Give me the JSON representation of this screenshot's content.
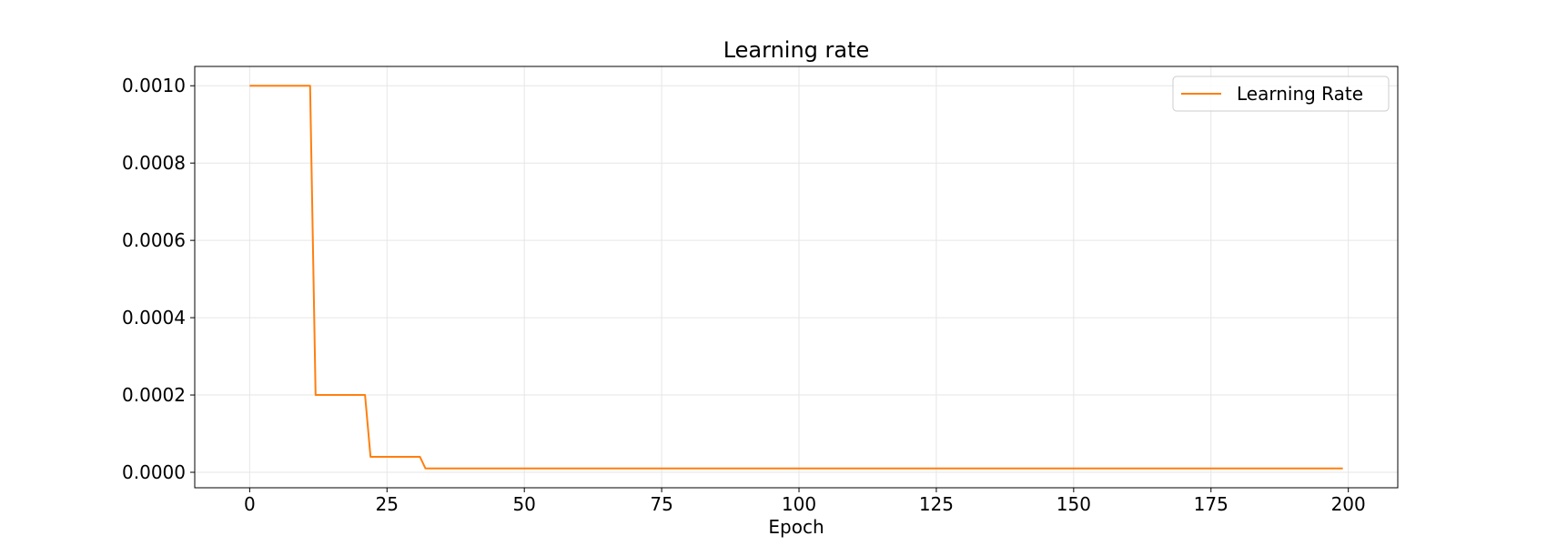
{
  "chart_data": {
    "type": "line",
    "title": "Learning rate",
    "xlabel": "Epoch",
    "ylabel": "",
    "xlim": [
      -10,
      209
    ],
    "ylim": [
      -4e-05,
      0.00105
    ],
    "grid": true,
    "legend_position": "top-right",
    "x_ticks": [
      0,
      25,
      50,
      75,
      100,
      125,
      150,
      175,
      200
    ],
    "x_tick_labels": [
      "0",
      "25",
      "50",
      "75",
      "100",
      "125",
      "150",
      "175",
      "200"
    ],
    "y_ticks": [
      0.0,
      0.0002,
      0.0004,
      0.0006,
      0.0008,
      0.001
    ],
    "y_tick_labels": [
      "0.0000",
      "0.0002",
      "0.0004",
      "0.0006",
      "0.0008",
      "0.0010"
    ],
    "series": [
      {
        "name": "Learning Rate",
        "color": "#ff7f0e",
        "x": [
          0,
          11,
          12,
          21,
          22,
          31,
          32,
          199
        ],
        "y": [
          0.001,
          0.001,
          0.0002,
          0.0002,
          4e-05,
          4e-05,
          1e-05,
          1e-05
        ]
      }
    ]
  }
}
